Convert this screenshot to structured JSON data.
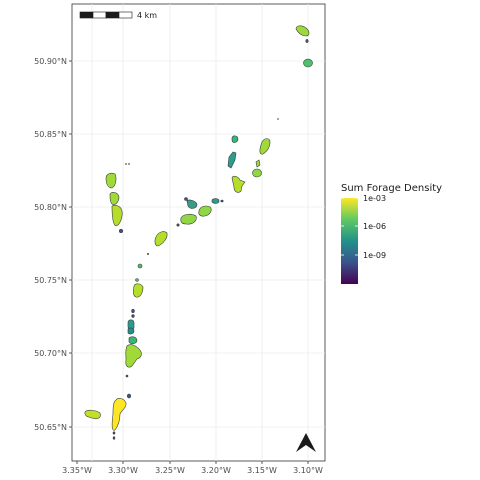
{
  "chart_data": {
    "type": "map",
    "x_ticks": [
      "3.35°W",
      "3.30°W",
      "3.25°W",
      "3.20°W",
      "3.15°W",
      "3.10°W"
    ],
    "y_ticks": [
      "50.65°N",
      "50.70°N",
      "50.75°N",
      "50.80°N",
      "50.85°N",
      "50.90°N"
    ],
    "xlim": [
      -3.358,
      -3.09
    ],
    "ylim": [
      50.628,
      50.935
    ],
    "grid": true,
    "legend": {
      "title": "Sum Forage Density",
      "labels": [
        "1e-03",
        "1e-06",
        "1e-09"
      ],
      "placement": "right",
      "colors": [
        "#fde725",
        "#5ec962",
        "#21918c",
        "#3b528b",
        "#440154"
      ]
    },
    "scale_bar": {
      "label": "4 km"
    },
    "north_arrow": true,
    "patches": [
      {
        "lon": -3.105,
        "lat": 50.921,
        "value": 0.55
      },
      {
        "lon": -3.101,
        "lat": 50.898,
        "value": 0.55
      },
      {
        "lon": -3.194,
        "lat": 50.846,
        "value": 0.5
      },
      {
        "lon": -3.196,
        "lat": 50.831,
        "value": 0.46
      },
      {
        "lon": -3.147,
        "lat": 50.838,
        "value": 0.8
      },
      {
        "lon": -3.154,
        "lat": 50.824,
        "value": 0.76
      },
      {
        "lon": -3.188,
        "lat": 50.816,
        "value": 0.82
      },
      {
        "lon": -3.208,
        "lat": 50.804,
        "value": 0.5
      },
      {
        "lon": -3.233,
        "lat": 50.802,
        "value": 0.48
      },
      {
        "lon": -3.23,
        "lat": 50.792,
        "value": 0.72
      },
      {
        "lon": -3.212,
        "lat": 50.797,
        "value": 0.74
      },
      {
        "lon": -3.257,
        "lat": 50.779,
        "value": 0.8
      },
      {
        "lon": -3.309,
        "lat": 50.817,
        "value": 0.8
      },
      {
        "lon": -3.307,
        "lat": 50.805,
        "value": 0.82
      },
      {
        "lon": -3.304,
        "lat": 50.792,
        "value": 0.84
      },
      {
        "lon": -3.285,
        "lat": 50.743,
        "value": 0.84
      },
      {
        "lon": -3.291,
        "lat": 50.718,
        "value": 0.5
      },
      {
        "lon": -3.288,
        "lat": 50.708,
        "value": 0.56
      },
      {
        "lon": -3.287,
        "lat": 50.698,
        "value": 0.82
      },
      {
        "lon": -3.302,
        "lat": 50.659,
        "value": 0.97
      },
      {
        "lon": -3.34,
        "lat": 50.659,
        "value": 0.82
      }
    ]
  }
}
